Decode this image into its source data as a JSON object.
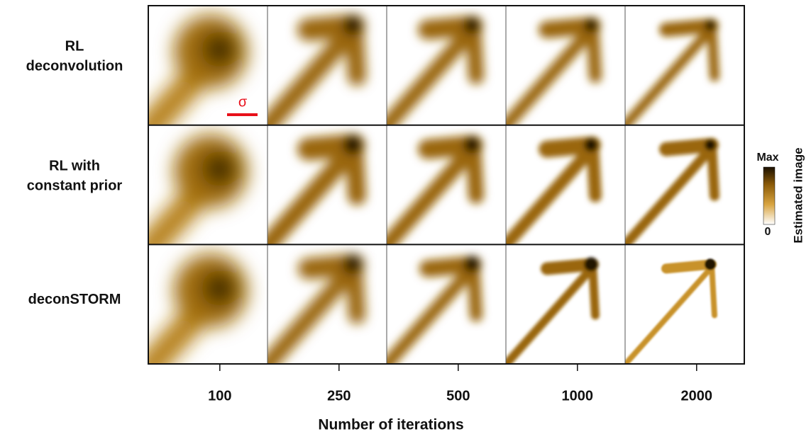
{
  "row_labels": [
    [
      "RL",
      "deconvolution"
    ],
    [
      "RL with",
      "constant prior"
    ],
    [
      "deconSTORM"
    ]
  ],
  "x_axis": {
    "title": "Number of iterations",
    "ticks": [
      "100",
      "250",
      "500",
      "1000",
      "2000"
    ]
  },
  "scale_bar_label": "σ",
  "colorbar": {
    "max_label": "Max",
    "min_label": "0",
    "title": "Estimated image"
  }
}
